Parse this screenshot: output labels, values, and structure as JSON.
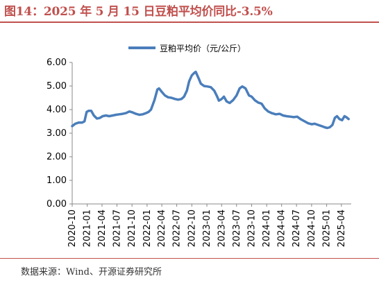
{
  "figure": {
    "title": "图14：2025 年 5 月 15 日豆粕平均价同比-3.5%",
    "source": "数据来源：Wind、开源证券研究所"
  },
  "colors": {
    "line": "#4a7ebb",
    "title": "#c0504d",
    "axis": "#888888"
  },
  "chart_data": {
    "type": "line",
    "title": "",
    "xlabel": "",
    "ylabel": "",
    "ylim": [
      0,
      6
    ],
    "y_ticks": [
      "0.00",
      "1.00",
      "2.00",
      "3.00",
      "4.00",
      "5.00",
      "6.00"
    ],
    "x_ticks": [
      "2020-10",
      "2021-01",
      "2021-04",
      "2021-07",
      "2021-10",
      "2022-01",
      "2022-04",
      "2022-07",
      "2022-10",
      "2023-01",
      "2023-04",
      "2023-07",
      "2023-10",
      "2024-01",
      "2024-04",
      "2024-07",
      "2024-10",
      "2025-01",
      "2025-04"
    ],
    "legend": {
      "position": "top-center"
    },
    "grid": false,
    "series": [
      {
        "name": "豆粕平均价（元/公斤）",
        "points": [
          [
            "2020-10-01",
            3.3
          ],
          [
            "2020-10-20",
            3.4
          ],
          [
            "2020-11-10",
            3.45
          ],
          [
            "2020-12-01",
            3.45
          ],
          [
            "2020-12-15",
            3.5
          ],
          [
            "2020-12-28",
            3.9
          ],
          [
            "2021-01-10",
            3.95
          ],
          [
            "2021-01-25",
            3.95
          ],
          [
            "2021-02-10",
            3.75
          ],
          [
            "2021-03-01",
            3.62
          ],
          [
            "2021-03-20",
            3.65
          ],
          [
            "2021-04-05",
            3.72
          ],
          [
            "2021-04-25",
            3.75
          ],
          [
            "2021-05-15",
            3.72
          ],
          [
            "2021-06-05",
            3.75
          ],
          [
            "2021-06-25",
            3.78
          ],
          [
            "2021-07-15",
            3.8
          ],
          [
            "2021-08-05",
            3.82
          ],
          [
            "2021-08-25",
            3.85
          ],
          [
            "2021-09-15",
            3.92
          ],
          [
            "2021-10-05",
            3.88
          ],
          [
            "2021-10-25",
            3.82
          ],
          [
            "2021-11-15",
            3.78
          ],
          [
            "2021-12-05",
            3.8
          ],
          [
            "2021-12-25",
            3.85
          ],
          [
            "2022-01-10",
            3.9
          ],
          [
            "2022-01-25",
            4.0
          ],
          [
            "2022-02-15",
            4.4
          ],
          [
            "2022-03-05",
            4.85
          ],
          [
            "2022-03-15",
            4.9
          ],
          [
            "2022-04-01",
            4.75
          ],
          [
            "2022-04-20",
            4.6
          ],
          [
            "2022-05-10",
            4.52
          ],
          [
            "2022-05-30",
            4.5
          ],
          [
            "2022-06-20",
            4.45
          ],
          [
            "2022-07-10",
            4.42
          ],
          [
            "2022-07-30",
            4.45
          ],
          [
            "2022-08-15",
            4.55
          ],
          [
            "2022-09-01",
            4.8
          ],
          [
            "2022-09-15",
            5.2
          ],
          [
            "2022-10-01",
            5.45
          ],
          [
            "2022-10-15",
            5.55
          ],
          [
            "2022-10-25",
            5.6
          ],
          [
            "2022-11-10",
            5.35
          ],
          [
            "2022-11-25",
            5.1
          ],
          [
            "2022-12-15",
            5.0
          ],
          [
            "2023-01-05",
            4.98
          ],
          [
            "2023-01-25",
            4.95
          ],
          [
            "2023-02-15",
            4.8
          ],
          [
            "2023-03-05",
            4.55
          ],
          [
            "2023-03-15",
            4.38
          ],
          [
            "2023-04-01",
            4.45
          ],
          [
            "2023-04-15",
            4.55
          ],
          [
            "2023-05-01",
            4.35
          ],
          [
            "2023-05-20",
            4.28
          ],
          [
            "2023-06-10",
            4.4
          ],
          [
            "2023-07-01",
            4.6
          ],
          [
            "2023-07-20",
            4.9
          ],
          [
            "2023-08-05",
            4.98
          ],
          [
            "2023-08-25",
            4.9
          ],
          [
            "2023-09-15",
            4.6
          ],
          [
            "2023-10-01",
            4.55
          ],
          [
            "2023-10-20",
            4.4
          ],
          [
            "2023-11-10",
            4.3
          ],
          [
            "2023-12-01",
            4.25
          ],
          [
            "2023-12-20",
            4.05
          ],
          [
            "2024-01-10",
            3.92
          ],
          [
            "2024-02-01",
            3.85
          ],
          [
            "2024-02-25",
            3.8
          ],
          [
            "2024-03-20",
            3.82
          ],
          [
            "2024-04-10",
            3.75
          ],
          [
            "2024-05-01",
            3.72
          ],
          [
            "2024-05-25",
            3.7
          ],
          [
            "2024-06-15",
            3.68
          ],
          [
            "2024-07-05",
            3.7
          ],
          [
            "2024-07-25",
            3.6
          ],
          [
            "2024-08-20",
            3.5
          ],
          [
            "2024-09-10",
            3.42
          ],
          [
            "2024-10-01",
            3.38
          ],
          [
            "2024-10-20",
            3.4
          ],
          [
            "2024-11-10",
            3.35
          ],
          [
            "2024-12-01",
            3.3
          ],
          [
            "2024-12-20",
            3.25
          ],
          [
            "2025-01-05",
            3.22
          ],
          [
            "2025-01-20",
            3.25
          ],
          [
            "2025-02-05",
            3.35
          ],
          [
            "2025-02-20",
            3.65
          ],
          [
            "2025-03-05",
            3.72
          ],
          [
            "2025-03-20",
            3.6
          ],
          [
            "2025-04-05",
            3.55
          ],
          [
            "2025-04-20",
            3.72
          ],
          [
            "2025-05-01",
            3.68
          ],
          [
            "2025-05-15",
            3.6
          ]
        ]
      }
    ]
  }
}
